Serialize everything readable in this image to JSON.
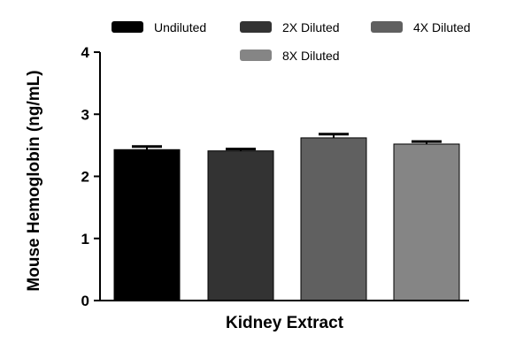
{
  "chart_data": {
    "type": "bar",
    "title": "",
    "xlabel": "Kidney Extract",
    "ylabel": "Mouse Hemoglobin (ng/mL)",
    "ylim": [
      0,
      4
    ],
    "yticks": [
      "0",
      "1",
      "2",
      "3",
      "4"
    ],
    "grid": false,
    "legend_position": "top",
    "categories": [
      "Kidney Extract"
    ],
    "series": [
      {
        "name": "Undiluted",
        "values": [
          2.43
        ],
        "error": [
          0.05
        ],
        "color": "#000000"
      },
      {
        "name": "2X Diluted",
        "values": [
          2.41
        ],
        "error": [
          0.03
        ],
        "color": "#333333"
      },
      {
        "name": "4X Diluted",
        "values": [
          2.62
        ],
        "error": [
          0.06
        ],
        "color": "#606060"
      },
      {
        "name": "8X Diluted",
        "values": [
          2.52
        ],
        "error": [
          0.04
        ],
        "color": "#858585"
      }
    ]
  }
}
